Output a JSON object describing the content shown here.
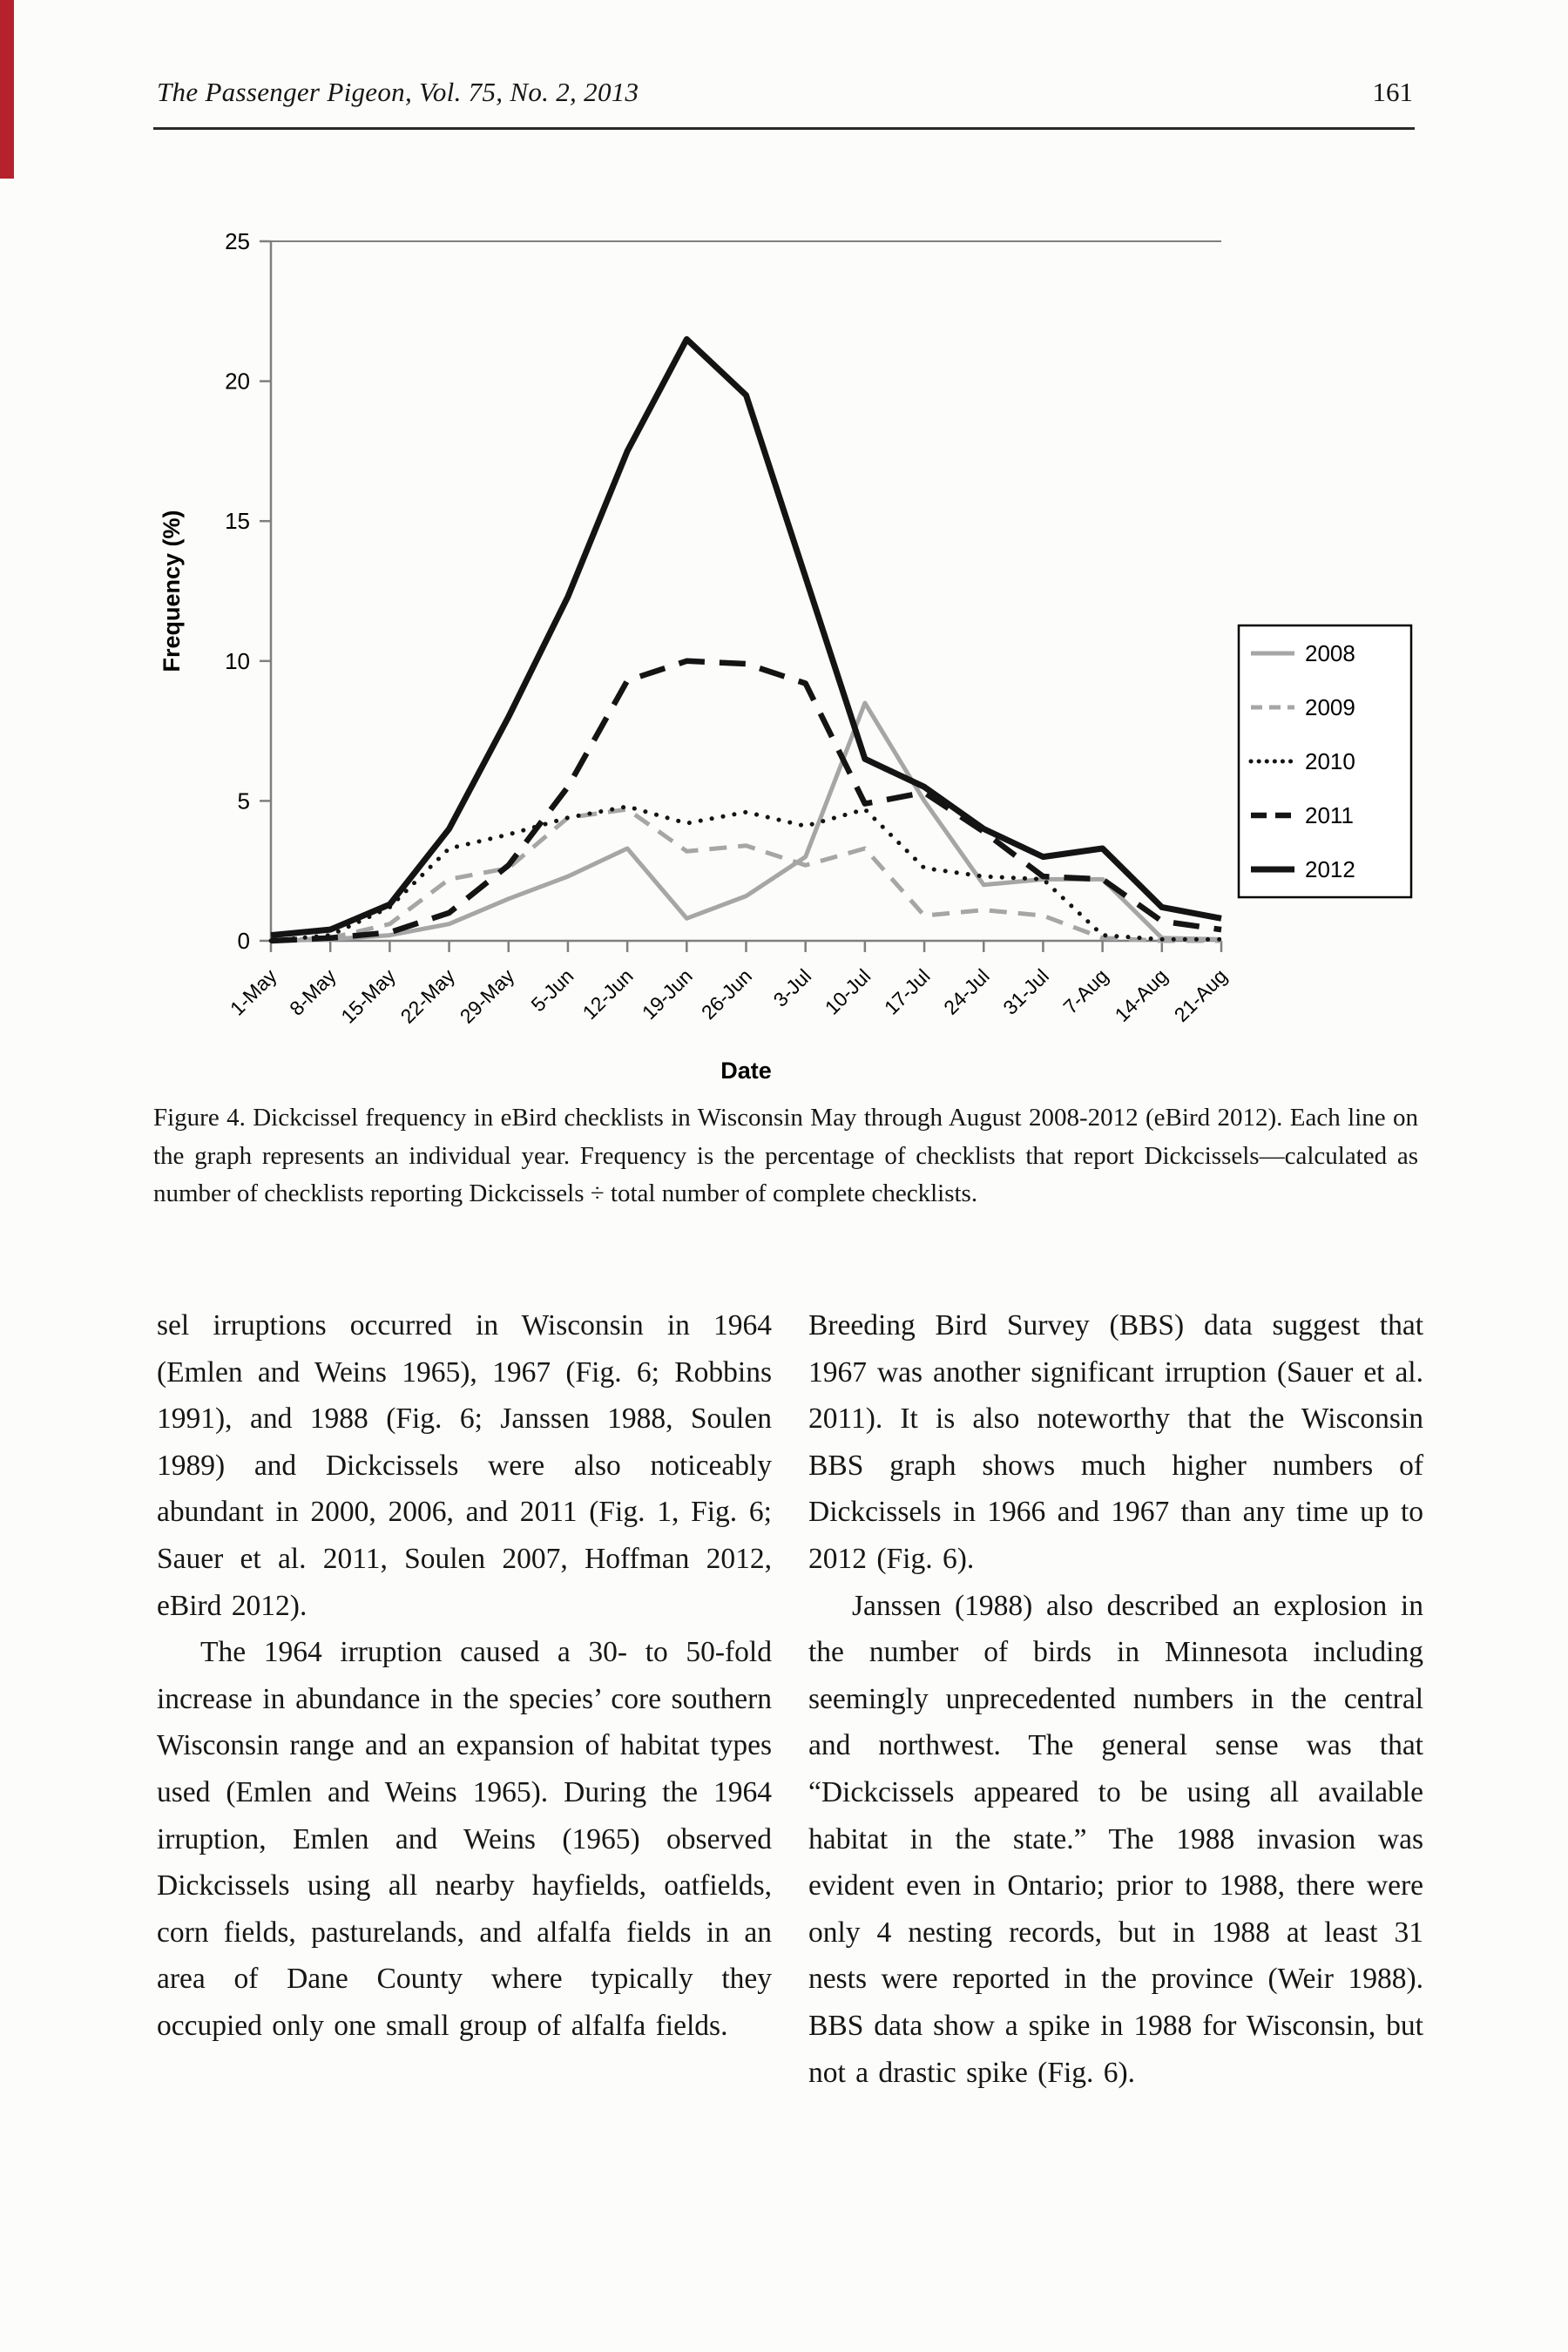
{
  "page": {
    "journal_header": "The Passenger Pigeon, Vol. 75, No. 2, 2013",
    "page_number": "161"
  },
  "figure": {
    "caption": "Figure 4. Dickcissel frequency in eBird checklists in Wisconsin May through August 2008-2012 (eBird 2012). Each line on the graph represents an individual year.  Frequency is the percentage of checklists that report Dickcissels—calculated as number of checklists reporting Dickcissels ÷ total number of complete checklists."
  },
  "chart_data": {
    "type": "line",
    "title": "",
    "xlabel": "Date",
    "ylabel": "Frequency (%)",
    "ylim": [
      0,
      25
    ],
    "yticks": [
      0,
      5,
      10,
      15,
      20,
      25
    ],
    "grid": false,
    "legend_position": "right",
    "categories": [
      "1-May",
      "8-May",
      "15-May",
      "22-May",
      "29-May",
      "5-Jun",
      "12-Jun",
      "19-Jun",
      "26-Jun",
      "3-Jul",
      "10-Jul",
      "17-Jul",
      "24-Jul",
      "31-Jul",
      "7-Aug",
      "14-Aug",
      "21-Aug"
    ],
    "series": [
      {
        "name": "2008",
        "color": "#a6a6a6",
        "line_style": "solid",
        "width": 5,
        "values": [
          0,
          0.05,
          0.2,
          0.6,
          1.5,
          2.3,
          3.3,
          0.8,
          1.6,
          3.0,
          8.5,
          5.0,
          2.0,
          2.2,
          2.2,
          0.1,
          0.05
        ]
      },
      {
        "name": "2009",
        "color": "#a6a6a6",
        "line_style": "dashed",
        "width": 5,
        "values": [
          0,
          0.1,
          0.6,
          2.2,
          2.6,
          4.4,
          4.7,
          3.2,
          3.4,
          2.7,
          3.3,
          0.9,
          1.1,
          0.9,
          0.1,
          0,
          0
        ]
      },
      {
        "name": "2010",
        "color": "#141414",
        "line_style": "dotted",
        "width": 5,
        "values": [
          0,
          0.2,
          1.2,
          3.3,
          3.8,
          4.4,
          4.8,
          4.2,
          4.6,
          4.1,
          4.7,
          2.6,
          2.3,
          2.2,
          0.2,
          0.05,
          0.05
        ]
      },
      {
        "name": "2011",
        "color": "#141414",
        "line_style": "dashed",
        "width": 6.5,
        "values": [
          0,
          0.1,
          0.3,
          1.0,
          2.7,
          5.5,
          9.3,
          10.0,
          9.9,
          9.2,
          4.9,
          5.3,
          3.9,
          2.3,
          2.2,
          0.7,
          0.4
        ]
      },
      {
        "name": "2012",
        "color": "#141414",
        "line_style": "solid",
        "width": 7,
        "values": [
          0.2,
          0.4,
          1.3,
          4.0,
          8.0,
          12.3,
          17.5,
          21.5,
          19.5,
          13.0,
          6.5,
          5.5,
          4.0,
          3.0,
          3.3,
          1.2,
          0.8
        ]
      }
    ]
  },
  "body": {
    "left_column": [
      "sel irruptions occurred in Wisconsin in 1964 (Emlen and Weins 1965), 1967 (Fig. 6; Robbins 1991), and 1988 (Fig. 6; Janssen 1988, Soulen 1989) and Dickcissels were also noticeably abundant in 2000, 2006, and 2011 (Fig. 1, Fig. 6; Sauer et al. 2011, Soulen 2007, Hoffman 2012, eBird 2012).",
      "The 1964 irruption caused a 30- to 50-fold increase in abundance in the species’ core southern Wisconsin range and an expansion of habitat types used (Emlen and Weins 1965). During the 1964 irruption, Emlen and Weins (1965) observed Dickcissels using all nearby hayfields, oatfields, corn fields, pasturelands, and alfalfa fields in an area of Dane County where typically they occupied only one small group of alfalfa fields."
    ],
    "right_column": [
      "Breeding Bird Survey (BBS) data suggest that 1967 was another significant irruption (Sauer et al. 2011). It is also noteworthy that the Wisconsin BBS graph shows much higher numbers of Dickcissels in 1966 and 1967 than any time up to 2012 (Fig. 6).",
      "Janssen (1988) also described an explosion in the number of birds in Minnesota including seemingly unprecedented numbers in the central and northwest. The general sense was that “Dickcissels appeared to be using all available habitat in the state.” The 1988 invasion was evident even in Ontario; prior to 1988, there were only 4 nesting records, but in 1988 at least 31 nests were reported in the province (Weir 1988). BBS data show a spike in 1988 for Wisconsin, but not a drastic spike (Fig. 6)."
    ]
  }
}
